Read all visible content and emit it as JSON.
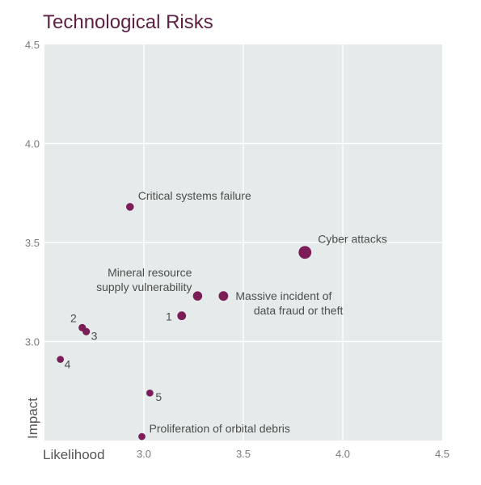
{
  "chart_data": {
    "type": "scatter",
    "title": "Technological Risks",
    "xlabel": "Likelihood",
    "ylabel": "Impact",
    "xlim": [
      2.5,
      4.5
    ],
    "ylim": [
      2.5,
      4.5
    ],
    "x_ticks": [
      "3.0",
      "3.5",
      "4.0",
      "4.5"
    ],
    "y_ticks": [
      "4.5",
      "4.0",
      "3.5",
      "3.0"
    ],
    "grid": true,
    "marker_color": "#7b1e58",
    "plot_background": "#e4ebea",
    "points": [
      {
        "label": "Critical systems failure",
        "x": 2.93,
        "y": 3.68,
        "size": 1
      },
      {
        "label": "Cyber attacks",
        "x": 3.81,
        "y": 3.45,
        "size": 3
      },
      {
        "label": "Mineral resource supply vulnerability",
        "x": 3.27,
        "y": 3.23,
        "size": 1.5
      },
      {
        "label": "Massive incident of data fraud or theft",
        "x": 3.4,
        "y": 3.23,
        "size": 1.6
      },
      {
        "label": "1",
        "x": 3.19,
        "y": 3.13,
        "size": 1.3
      },
      {
        "label": "2",
        "x": 2.69,
        "y": 3.07,
        "size": 0.9
      },
      {
        "label": "3",
        "x": 2.71,
        "y": 3.05,
        "size": 0.9
      },
      {
        "label": "4",
        "x": 2.58,
        "y": 2.91,
        "size": 0.8
      },
      {
        "label": "5",
        "x": 3.03,
        "y": 2.74,
        "size": 0.8
      },
      {
        "label": "Proliferation of orbital debris",
        "x": 2.99,
        "y": 2.52,
        "size": 0.8
      }
    ]
  }
}
